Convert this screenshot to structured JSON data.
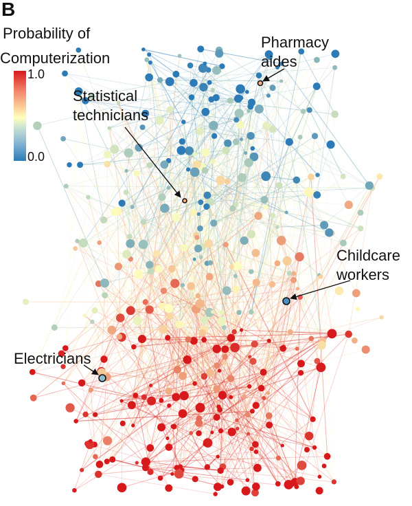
{
  "panel": {
    "letter": "B"
  },
  "colorbar": {
    "title_line1": "Probability of",
    "title_line2": "Computerization",
    "max_label": "1.0",
    "min_label": "0.0",
    "low_color": "#2c7bb6",
    "mid_color": "#ffffbf",
    "high_color": "#d7191c"
  },
  "annotations": {
    "pharmacy": {
      "line1": "Pharmacy",
      "line2": "aides"
    },
    "statistical": {
      "line1": "Statistical",
      "line2": "technicians"
    },
    "childcare": {
      "line1": "Childcare",
      "line2": "workers"
    },
    "electricians": {
      "line1": "Electricians"
    }
  }
}
